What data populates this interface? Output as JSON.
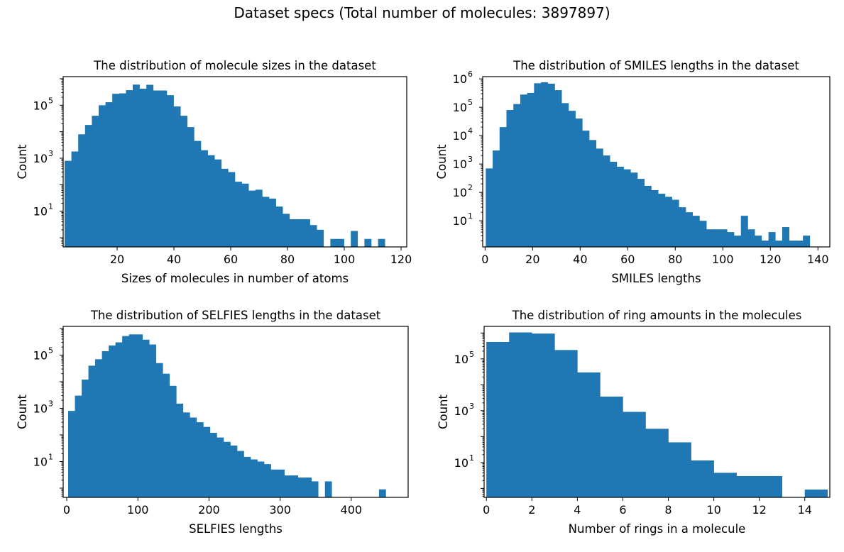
{
  "figure_title": "Dataset specs (Total number of molecules: 3897897)",
  "colors": {
    "bar": "#1f77b4"
  },
  "chart_data": [
    {
      "type": "bar",
      "title": "The distribution of molecule sizes in the dataset",
      "xlabel": "Sizes of molecules in number of atoms",
      "ylabel": "Count",
      "xlim": [
        1,
        122
      ],
      "ylim": [
        0.45,
        1200000
      ],
      "yscale": "log",
      "grid": false,
      "xticks": [
        20,
        40,
        60,
        80,
        100,
        120
      ],
      "yticks": [
        {
          "value": 10,
          "label": "10",
          "exp": "1"
        },
        {
          "value": 1000,
          "label": "10",
          "exp": "3"
        },
        {
          "value": 100000,
          "label": "10",
          "exp": "5"
        }
      ],
      "bin_start": 1.5,
      "bin_width": 2.4,
      "values": [
        800,
        1800,
        8000,
        18000,
        40000,
        100000,
        130000,
        270000,
        280000,
        370000,
        600000,
        420000,
        590000,
        360000,
        360000,
        240000,
        90000,
        40000,
        15000,
        4500,
        2000,
        1300,
        900,
        400,
        300,
        130,
        110,
        60,
        65,
        35,
        30,
        15,
        8,
        5,
        5,
        5,
        3,
        2,
        0,
        0.9,
        0.9,
        0,
        1.8,
        0,
        0.9,
        0,
        0.9
      ]
    },
    {
      "type": "bar",
      "title": "The distribution of SMILES lengths in the dataset",
      "xlabel": "SMILES lengths",
      "ylabel": "Count",
      "xlim": [
        -1,
        145
      ],
      "ylim": [
        1.2,
        1200000
      ],
      "yscale": "log",
      "grid": false,
      "xticks": [
        0,
        20,
        40,
        60,
        80,
        100,
        120,
        140
      ],
      "yticks": [
        {
          "value": 10,
          "label": "10",
          "exp": "1"
        },
        {
          "value": 100,
          "label": "10",
          "exp": "2"
        },
        {
          "value": 1000,
          "label": "10",
          "exp": "3"
        },
        {
          "value": 10000,
          "label": "10",
          "exp": "4"
        },
        {
          "value": 100000,
          "label": "10",
          "exp": "5"
        },
        {
          "value": 1000000,
          "label": "10",
          "exp": "6"
        }
      ],
      "bin_start": 0.3,
      "bin_width": 2.9,
      "values": [
        700,
        3000,
        20000,
        80000,
        130000,
        280000,
        320000,
        700000,
        760000,
        680000,
        400000,
        140000,
        75000,
        40000,
        15000,
        7000,
        3500,
        2000,
        1200,
        800,
        650,
        500,
        300,
        170,
        120,
        90,
        70,
        55,
        30,
        20,
        15,
        10,
        5,
        5,
        5,
        4,
        3,
        15,
        5,
        3,
        2,
        4,
        2,
        6,
        2,
        2,
        3
      ]
    },
    {
      "type": "bar",
      "title": "The distribution of SELFIES lengths in the dataset",
      "xlabel": "SELFIES lengths",
      "ylabel": "Count",
      "xlim": [
        -5,
        480
      ],
      "ylim": [
        0.45,
        1200000
      ],
      "yscale": "log",
      "grid": false,
      "xticks": [
        0,
        100,
        200,
        300,
        400
      ],
      "yticks": [
        {
          "value": 10,
          "label": "10",
          "exp": "1"
        },
        {
          "value": 1000,
          "label": "10",
          "exp": "3"
        },
        {
          "value": 100000,
          "label": "10",
          "exp": "5"
        }
      ],
      "bin_start": 2,
      "bin_width": 9.5,
      "values": [
        800,
        3000,
        12000,
        40000,
        70000,
        140000,
        230000,
        300000,
        520000,
        600000,
        600000,
        380000,
        250000,
        50000,
        20000,
        7000,
        1500,
        700,
        450,
        300,
        200,
        120,
        80,
        55,
        40,
        25,
        15,
        12,
        10,
        8,
        5,
        5,
        3,
        3,
        2.5,
        2.5,
        1.8,
        0,
        1.8,
        0,
        0,
        0,
        0,
        0,
        0,
        0,
        0.9
      ]
    },
    {
      "type": "bar",
      "title": "The distribution of ring amounts in the molecules",
      "xlabel": "Number of rings in a molecule",
      "ylabel": "Count",
      "xlim": [
        -0.1,
        15.1
      ],
      "ylim": [
        0.45,
        1800000
      ],
      "yscale": "log",
      "grid": false,
      "xticks": [
        0,
        2,
        4,
        6,
        8,
        10,
        12,
        14
      ],
      "yticks": [
        {
          "value": 10,
          "label": "10",
          "exp": "1"
        },
        {
          "value": 1000,
          "label": "10",
          "exp": "3"
        },
        {
          "value": 100000,
          "label": "10",
          "exp": "5"
        }
      ],
      "bin_start": 0,
      "bin_width": 1,
      "values": [
        450000,
        1050000,
        950000,
        220000,
        30000,
        3500,
        900,
        200,
        60,
        12,
        4,
        3,
        3,
        0,
        0.9
      ]
    }
  ]
}
